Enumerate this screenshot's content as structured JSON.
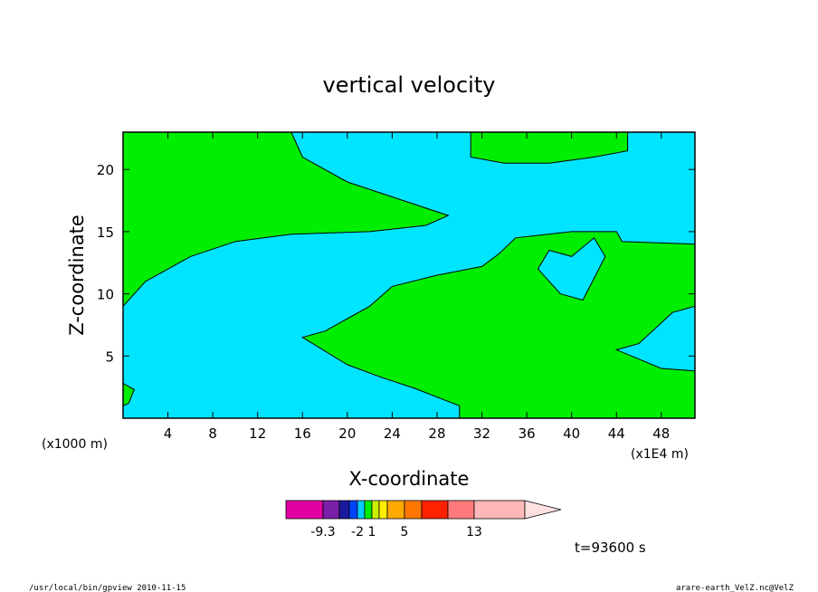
{
  "chart_data": {
    "type": "heatmap",
    "title": "vertical velocity",
    "xlabel": "X-coordinate",
    "ylabel": "Z-coordinate",
    "x_unit_left": "(x1000 m)",
    "x_unit_right": "(x1E4 m)",
    "xlim": [
      0,
      51
    ],
    "ylim": [
      0,
      23
    ],
    "x_ticks": [
      4,
      8,
      12,
      16,
      20,
      24,
      28,
      32,
      36,
      40,
      44,
      48
    ],
    "y_ticks": [
      5,
      10,
      15,
      20
    ],
    "fill_colors": {
      "negative": "#00e5ff",
      "positive": "#00ee00",
      "contour_line": "#000000"
    },
    "regions_positive": [
      {
        "name": "upper-left-band",
        "polygon": [
          [
            0,
            23
          ],
          [
            15,
            23
          ],
          [
            16,
            21
          ],
          [
            20,
            19
          ],
          [
            25,
            17.5
          ],
          [
            29,
            16.3
          ],
          [
            27,
            15.5
          ],
          [
            22,
            15
          ],
          [
            15,
            14.8
          ],
          [
            10,
            14.2
          ],
          [
            6,
            13
          ],
          [
            2,
            11
          ],
          [
            0,
            9
          ]
        ]
      },
      {
        "name": "lower-right-body",
        "polygon": [
          [
            18,
            7
          ],
          [
            22,
            9
          ],
          [
            24,
            10.6
          ],
          [
            28,
            11.5
          ],
          [
            32,
            12.2
          ],
          [
            33.5,
            13.2
          ],
          [
            35,
            14.5
          ],
          [
            40,
            15
          ],
          [
            44,
            15
          ],
          [
            44.5,
            14.2
          ],
          [
            51,
            14
          ],
          [
            51,
            9
          ],
          [
            49,
            8.5
          ],
          [
            46,
            6
          ],
          [
            44,
            5.5
          ],
          [
            48,
            4
          ],
          [
            51,
            3.8
          ],
          [
            51,
            0
          ],
          [
            30,
            0
          ],
          [
            30,
            1
          ],
          [
            26,
            2.4
          ],
          [
            23,
            3.3
          ],
          [
            20,
            4.3
          ],
          [
            16,
            6.5
          ]
        ]
      },
      {
        "name": "top-right-strip",
        "polygon": [
          [
            31,
            23
          ],
          [
            45,
            23
          ],
          [
            45,
            21.5
          ],
          [
            42,
            21
          ],
          [
            38,
            20.5
          ],
          [
            34,
            20.5
          ],
          [
            31,
            21
          ]
        ]
      },
      {
        "name": "left-bottom-patch",
        "polygon": [
          [
            0,
            2.8
          ],
          [
            1,
            2.3
          ],
          [
            0.5,
            1.2
          ],
          [
            0,
            1
          ]
        ]
      }
    ],
    "regions_negative": [
      {
        "name": "upper-cell-cut",
        "polygon": [
          [
            37,
            12
          ],
          [
            39,
            10
          ],
          [
            41,
            9.5
          ],
          [
            43,
            13
          ],
          [
            42,
            14.5
          ],
          [
            40,
            13
          ],
          [
            38,
            13.5
          ]
        ]
      }
    ],
    "colorbar": {
      "colors": [
        "#e100a0",
        "#7a1fa8",
        "#1a1aa0",
        "#0044ff",
        "#00ccff",
        "#00ee00",
        "#ccee00",
        "#ffee00",
        "#ffaa00",
        "#ff7700",
        "#ff2200",
        "#ff7b7b",
        "#ffb8b8",
        "#ffe0e0"
      ],
      "tick_labels": [
        "-9.3",
        "-2",
        "1",
        "5",
        "13"
      ]
    },
    "time_label": "t=93600 s",
    "footer_left": "/usr/local/bin/gpview  2010-11-15",
    "footer_right": "arare-earth_VelZ.nc@VelZ"
  }
}
